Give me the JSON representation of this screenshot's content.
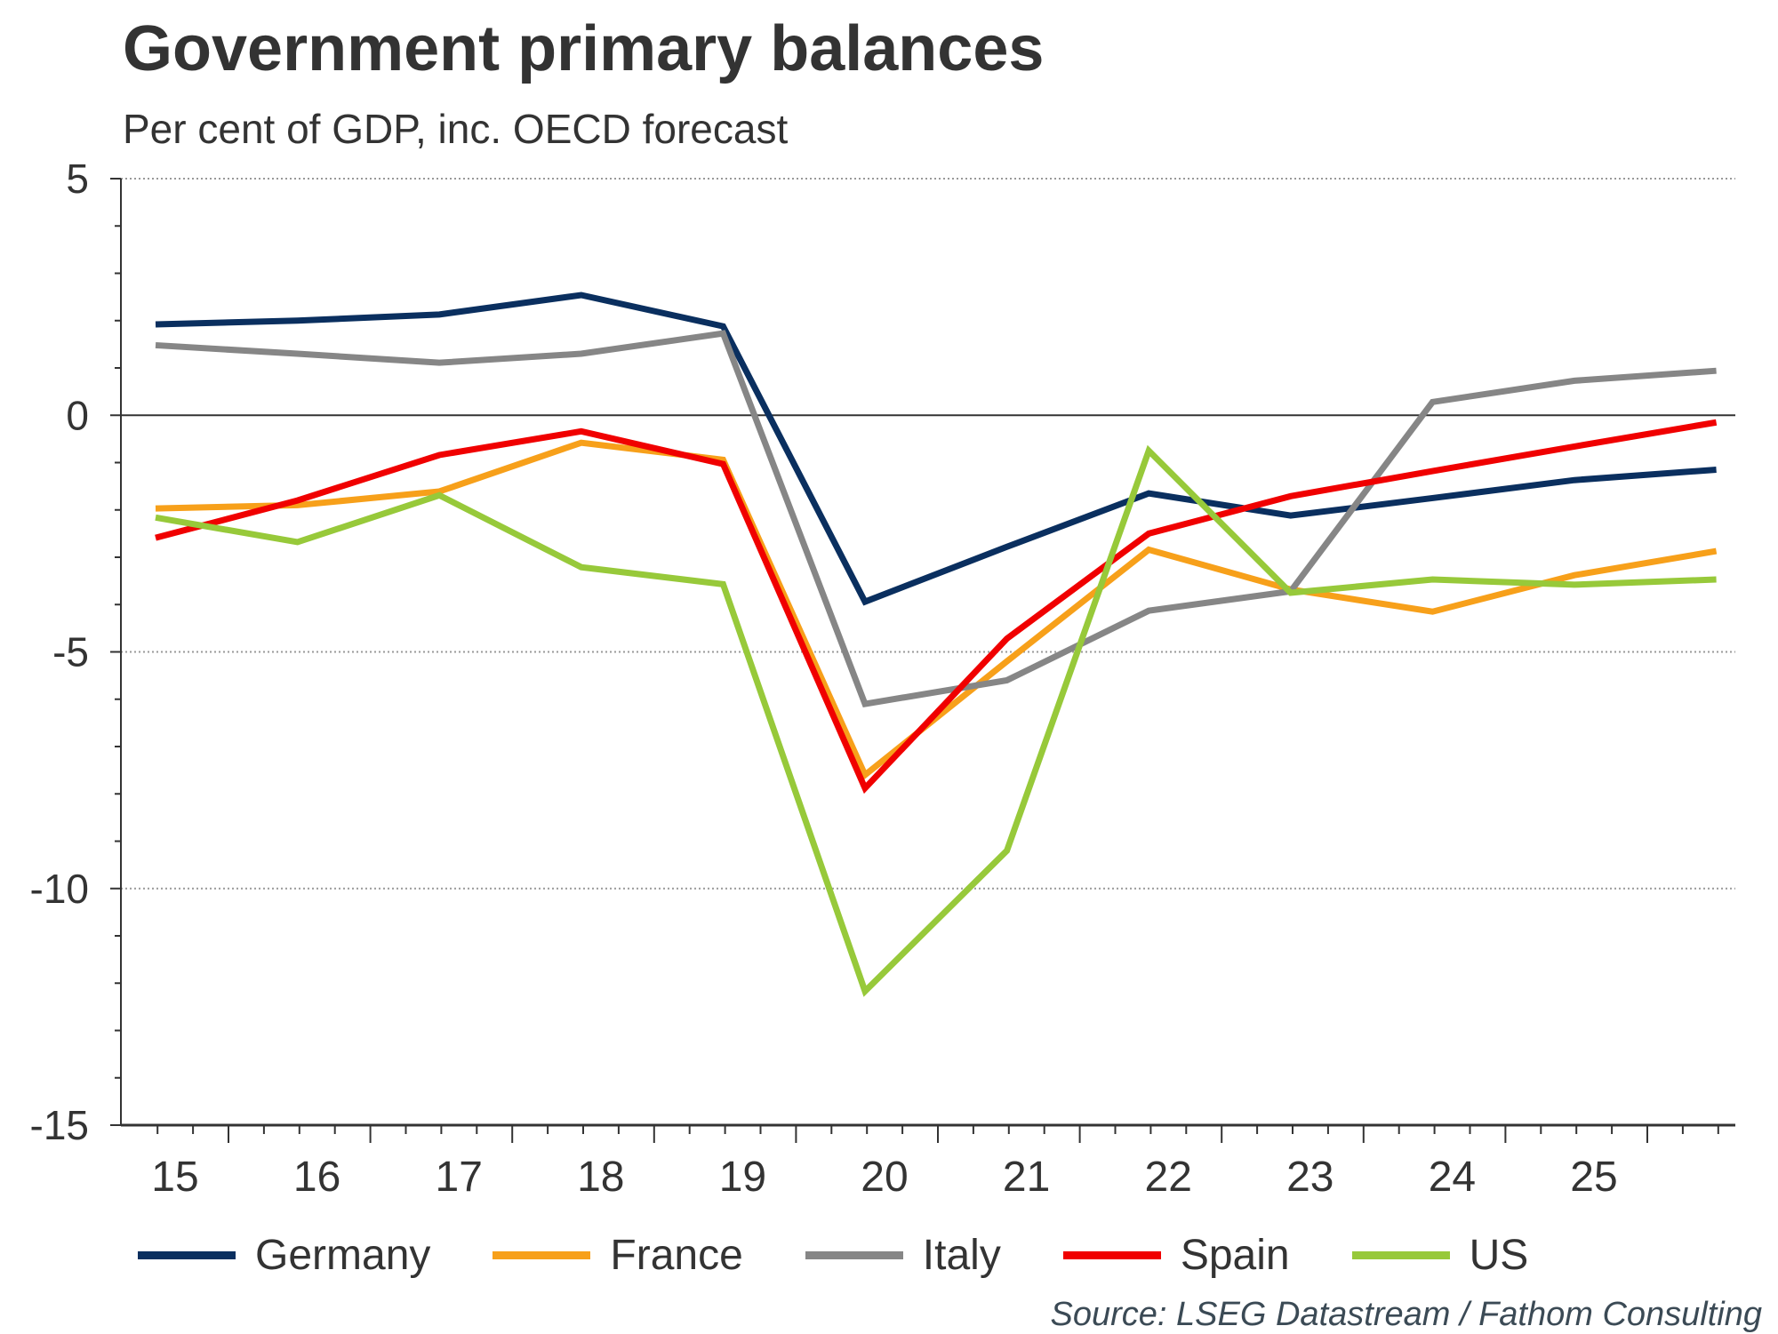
{
  "chart_data": {
    "type": "line",
    "title": "Government primary balances",
    "subtitle": "Per cent of GDP, inc. OECD forecast",
    "xlabel": "",
    "ylabel": "",
    "x": [
      2015,
      2016,
      2017,
      2018,
      2019,
      2020,
      2021,
      2022,
      2023,
      2024,
      2025,
      2026
    ],
    "x_tick_labels": [
      "15",
      "16",
      "17",
      "18",
      "19",
      "20",
      "21",
      "22",
      "23",
      "24",
      "25"
    ],
    "y_ticks": [
      5,
      0,
      -5,
      -10,
      -15
    ],
    "y_tick_labels": [
      "5",
      "0",
      "-5",
      "-10",
      "-15"
    ],
    "ylim": [
      -15,
      5
    ],
    "grid": "horizontal dotted at major y ticks",
    "legend_position": "bottom",
    "series": [
      {
        "name": "Germany",
        "color": "#0a2f5f",
        "values": [
          1.92,
          2.0,
          2.13,
          2.54,
          1.88,
          -3.94,
          -2.78,
          -1.65,
          -2.12,
          -1.75,
          -1.37,
          -1.15
        ]
      },
      {
        "name": "France",
        "color": "#f7a01a",
        "values": [
          -1.97,
          -1.9,
          -1.61,
          -0.58,
          -0.94,
          -7.6,
          -5.2,
          -2.84,
          -3.68,
          -4.15,
          -3.38,
          -2.87
        ]
      },
      {
        "name": "Italy",
        "color": "#868686",
        "values": [
          1.48,
          1.3,
          1.11,
          1.3,
          1.73,
          -6.1,
          -5.6,
          -4.13,
          -3.72,
          0.28,
          0.73,
          0.94
        ]
      },
      {
        "name": "Spain",
        "color": "#f00000",
        "values": [
          -2.59,
          -1.8,
          -0.84,
          -0.34,
          -1.03,
          -7.88,
          -4.72,
          -2.5,
          -1.71,
          -1.18,
          -0.66,
          -0.15
        ]
      },
      {
        "name": "US",
        "color": "#97c93a",
        "values": [
          -2.16,
          -2.68,
          -1.69,
          -3.21,
          -3.57,
          -12.17,
          -9.2,
          -0.75,
          -3.75,
          -3.47,
          -3.58,
          -3.47
        ]
      }
    ],
    "source": "Source: LSEG Datastream / Fathom Consulting"
  }
}
